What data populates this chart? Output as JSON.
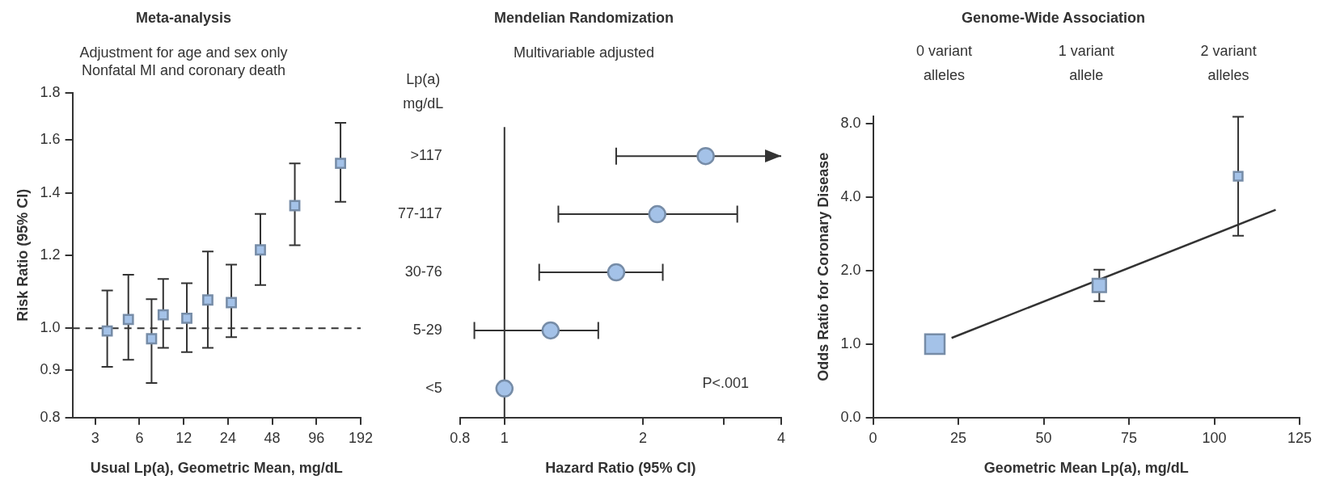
{
  "chart_data": [
    {
      "type": "scatter",
      "title": "Meta-analysis",
      "subtitle": "Adjustment for age and sex only\nNonfatal MI and coronary death",
      "xlabel": "Usual Lp(a), Geometric Mean, mg/dL",
      "ylabel": "Risk Ratio (95% CI)",
      "x": [
        3.62,
        5.04,
        7.25,
        8.7,
        12.6,
        17.5,
        25.3,
        39.9,
        68.4,
        140
      ],
      "series": [
        {
          "color": "#a4c2e8",
          "values": [
            0.993,
            1.022,
            0.974,
            1.034,
            1.025,
            1.073,
            1.066,
            1.216,
            1.358,
            1.509
          ],
          "errors": [
            [
              0.908,
              1.099
            ],
            [
              0.924,
              1.143
            ],
            [
              0.872,
              1.075
            ],
            [
              0.952,
              1.131
            ],
            [
              0.942,
              1.119
            ],
            [
              0.952,
              1.211
            ],
            [
              0.978,
              1.172
            ],
            [
              1.114,
              1.33
            ],
            [
              1.23,
              1.509
            ],
            [
              1.371,
              1.67
            ]
          ]
        }
      ],
      "marker": "square",
      "log": "xy",
      "xlim": [
        2.1,
        192
      ],
      "xticks": [
        3,
        6,
        12,
        24,
        48,
        96,
        192
      ],
      "ylim": [
        0.8,
        1.8
      ],
      "yticks": [
        0.8,
        0.9,
        {
          "value": 1,
          "label": "1.0"
        },
        1.2,
        1.4,
        1.6,
        1.8
      ],
      "ref_lines": [
        {
          "axis": "y",
          "value": 1,
          "color": "#333333",
          "line_style": "dashed"
        }
      ],
      "grid": false,
      "legend": false
    },
    {
      "type": "scatter",
      "orientation": "horizontal",
      "title": "Mendelian Randomization",
      "subtitle": "Multivariable adjusted",
      "xlabel": "Hazard Ratio (95% CI)",
      "ylabel": "Lp(a) mg/dL",
      "categories": [
        ">117",
        "77-117",
        "30-76",
        "5-29",
        "<5"
      ],
      "series": [
        {
          "color": "#a4c2e8",
          "values": [
            2.74,
            2.15,
            1.75,
            1.26,
            1.0
          ],
          "errors": [
            [
              1.75,
              4
            ],
            [
              1.31,
              3.21
            ],
            [
              1.19,
              2.21
            ],
            [
              0.86,
              1.6
            ],
            null
          ]
        }
      ],
      "marker": "circle",
      "log": "x",
      "xlim": [
        0.8,
        4
      ],
      "xticks": [
        0.8,
        1,
        2,
        {
          "value": 3,
          "label": null
        },
        4
      ],
      "ref_lines": [
        {
          "axis": "x",
          "value": 1,
          "color": "#333333"
        }
      ],
      "annotations": [
        "P<.001"
      ],
      "grid": false,
      "legend": false
    },
    {
      "type": "bubble",
      "title": "Genome-Wide Association",
      "xlabel": "Geometric Mean Lp(a), mg/dL",
      "ylabel": "Odds Ratio for Coronary Disease",
      "series": [
        {
          "color": "#a4c2e8",
          "marker": "square",
          "x": [
            18.1,
            66.3,
            107
          ],
          "values": [
            1.0,
            1.74,
            4.87
          ],
          "sizes": [
            1,
            0.48,
            0.2
          ],
          "errors": [
            null,
            [
              1.5,
              2.02
            ],
            [
              2.78,
              8.54
            ]
          ]
        },
        {
          "type": "line",
          "marker": "none",
          "color": "#333333",
          "x": [
            23,
            118
          ],
          "values": [
            1.06,
            3.55
          ]
        }
      ],
      "log": "y",
      "xlim": [
        0,
        125
      ],
      "xticks": [
        0,
        25,
        50,
        75,
        100,
        125
      ],
      "annotations": [
        "0 variant alleles",
        "1 variant allele",
        "2 variant alleles"
      ],
      "ylim": [
        0,
        8.6
      ],
      "yticks": [
        {
          "value": 0,
          "label": "0.0"
        },
        {
          "value": 1,
          "label": "1.0"
        },
        {
          "value": 2,
          "label": "2.0"
        },
        {
          "value": 4,
          "label": "4.0"
        },
        {
          "value": 8,
          "label": "8.0"
        }
      ],
      "grid": false,
      "legend": false
    }
  ]
}
